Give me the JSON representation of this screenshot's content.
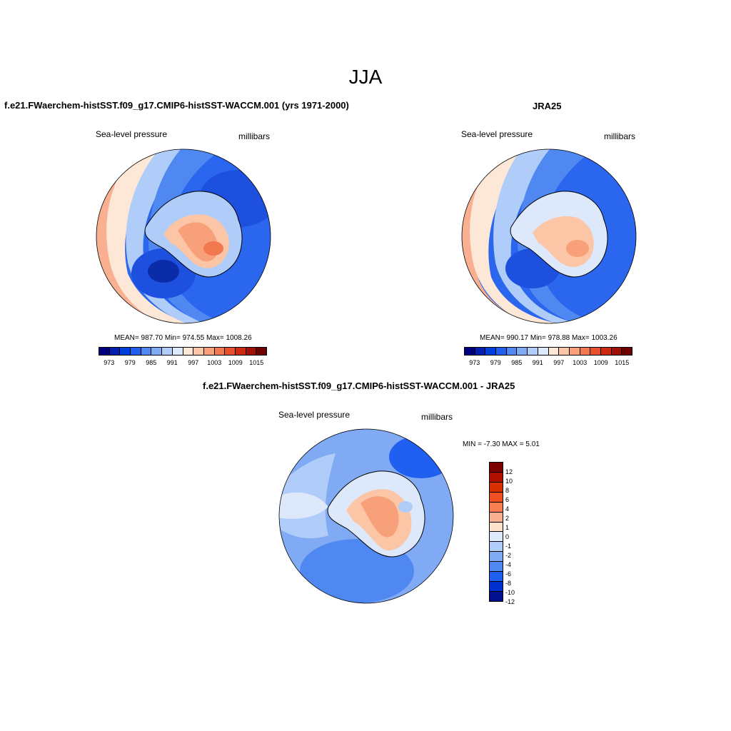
{
  "page": {
    "title": "JJA"
  },
  "panels": {
    "model": {
      "title": "f.e21.FWaerchem-histSST.f09_g17.CMIP6-histSST-WACCM.001 (yrs 1971-2000)",
      "left_label": "Sea-level pressure",
      "right_label": "millibars",
      "stats": "MEAN= 987.70  Min= 974.55  Max= 1008.26"
    },
    "obs": {
      "title": "JRA25",
      "left_label": "Sea-level pressure",
      "right_label": "millibars",
      "stats": "MEAN= 990.17  Min= 978.88  Max= 1003.26"
    },
    "diff": {
      "title": "f.e21.FWaerchem-histSST.f09_g17.CMIP6-histSST-WACCM.001 - JRA25",
      "left_label": "Sea-level pressure",
      "right_label": "millibars",
      "stats": "MIN =  -7.30 MAX =   5.01"
    }
  },
  "colorbar_abs": {
    "colors": [
      "#00007f",
      "#0020b0",
      "#0040dc",
      "#2060f0",
      "#5088f2",
      "#80aaf4",
      "#b0ccf8",
      "#dde8fb",
      "#fde7d6",
      "#fcc6a6",
      "#f8a07a",
      "#f27850",
      "#e8502c",
      "#cc2a10",
      "#a01006",
      "#700000"
    ],
    "ticks": [
      "973",
      "979",
      "985",
      "991",
      "997",
      "1003",
      "1009",
      "1015"
    ]
  },
  "colorbar_diff": {
    "colors": [
      "#7c0000",
      "#b01000",
      "#d83000",
      "#f05020",
      "#f88050",
      "#f8b090",
      "#fde2cc",
      "#dde8fb",
      "#b0ccf8",
      "#80aaf4",
      "#5088f2",
      "#2060f0",
      "#0030d0",
      "#00108f"
    ],
    "ticks": [
      "12",
      "10",
      "8",
      "6",
      "4",
      "2",
      "1",
      "0",
      "-1",
      "-2",
      "-4",
      "-6",
      "-8",
      "-10",
      "-12"
    ]
  },
  "chart_data": [
    {
      "type": "heatmap",
      "title": "f.e21.FWaerchem-histSST.f09_g17.CMIP6-histSST-WACCM.001 (yrs 1971-2000)",
      "variable": "Sea-level pressure",
      "units": "millibars",
      "projection": "south polar stereographic",
      "mean": 987.7,
      "min": 974.55,
      "max": 1008.26,
      "levels": [
        973,
        976,
        979,
        982,
        985,
        988,
        991,
        994,
        997,
        1000,
        1003,
        1006,
        1009,
        1012,
        1015
      ]
    },
    {
      "type": "heatmap",
      "title": "JRA25",
      "variable": "Sea-level pressure",
      "units": "millibars",
      "projection": "south polar stereographic",
      "mean": 990.17,
      "min": 978.88,
      "max": 1003.26,
      "levels": [
        973,
        976,
        979,
        982,
        985,
        988,
        991,
        994,
        997,
        1000,
        1003,
        1006,
        1009,
        1012,
        1015
      ]
    },
    {
      "type": "heatmap",
      "title": "f.e21.FWaerchem-histSST.f09_g17.CMIP6-histSST-WACCM.001 - JRA25",
      "variable": "Sea-level pressure",
      "units": "millibars",
      "projection": "south polar stereographic",
      "min": -7.3,
      "max": 5.01,
      "levels": [
        -12,
        -10,
        -8,
        -6,
        -4,
        -2,
        -1,
        0,
        1,
        2,
        4,
        6,
        8,
        10,
        12
      ]
    }
  ]
}
